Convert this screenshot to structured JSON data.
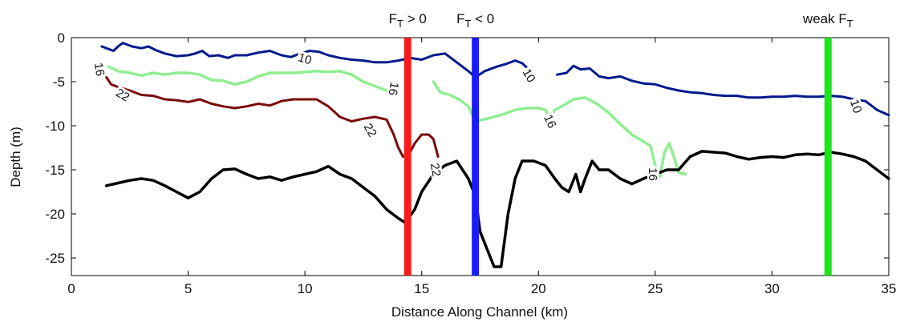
{
  "chart_data": {
    "type": "line",
    "title": "",
    "xlabel": "Distance Along Channel (km)",
    "ylabel": "Depth (m)",
    "xlim": [
      0,
      35
    ],
    "ylim": [
      -27,
      0
    ],
    "x_ticks": [
      0,
      5,
      10,
      15,
      20,
      25,
      30,
      35
    ],
    "y_ticks": [
      0,
      -5,
      -10,
      -15,
      -20,
      -25
    ],
    "grid": false,
    "colors": {
      "isoline_10": "#001a8c",
      "isoline_16": "#90ee90",
      "isoline_22": "#7a0a0a",
      "bottom": "#000000",
      "ft_pos": "#ff1a1a",
      "ft_neg": "#1a1aff",
      "ft_weak": "#22e022"
    },
    "series": [
      {
        "key": "isoline_10",
        "segments": [
          [
            [
              1.3,
              -1.0
            ],
            [
              1.5,
              -1.2
            ],
            [
              1.8,
              -1.5
            ],
            [
              2.0,
              -1.0
            ],
            [
              2.2,
              -0.6
            ],
            [
              2.6,
              -1.0
            ],
            [
              3.0,
              -1.2
            ],
            [
              3.3,
              -1.0
            ],
            [
              3.6,
              -1.4
            ],
            [
              4.0,
              -1.8
            ],
            [
              4.5,
              -2.1
            ],
            [
              5.0,
              -2.0
            ],
            [
              5.3,
              -1.8
            ],
            [
              5.6,
              -1.5
            ],
            [
              5.9,
              -2.1
            ],
            [
              6.3,
              -2.0
            ],
            [
              6.7,
              -2.3
            ],
            [
              7.0,
              -2.0
            ],
            [
              7.5,
              -2.0
            ],
            [
              8.0,
              -1.7
            ],
            [
              8.5,
              -1.5
            ],
            [
              9.0,
              -2.0
            ],
            [
              9.4,
              -2.2
            ],
            [
              9.8,
              -1.8
            ],
            [
              10.2,
              -1.5
            ],
            [
              10.6,
              -1.6
            ],
            [
              11.0,
              -2.0
            ],
            [
              11.5,
              -2.3
            ],
            [
              12.0,
              -2.5
            ],
            [
              12.5,
              -2.6
            ],
            [
              13.0,
              -2.8
            ],
            [
              13.5,
              -2.8
            ],
            [
              14.0,
              -2.6
            ],
            [
              14.5,
              -2.3
            ],
            [
              15.0,
              -2.5
            ],
            [
              15.5,
              -2.0
            ],
            [
              16.0,
              -1.8
            ],
            [
              16.5,
              -2.8
            ],
            [
              17.0,
              -3.8
            ],
            [
              17.3,
              -4.5
            ],
            [
              17.7,
              -3.8
            ],
            [
              18.2,
              -3.3
            ],
            [
              18.6,
              -3.0
            ],
            [
              19.0,
              -2.6
            ],
            [
              19.3,
              -2.9
            ],
            [
              19.5,
              -3.4
            ]
          ],
          [
            [
              20.8,
              -4.2
            ],
            [
              21.2,
              -4.0
            ],
            [
              21.5,
              -3.2
            ],
            [
              21.8,
              -3.6
            ],
            [
              22.2,
              -3.5
            ],
            [
              22.6,
              -4.4
            ],
            [
              23.0,
              -4.6
            ],
            [
              23.5,
              -4.4
            ],
            [
              24.0,
              -4.9
            ],
            [
              24.5,
              -5.2
            ],
            [
              25.0,
              -5.3
            ],
            [
              25.5,
              -5.7
            ],
            [
              26.0,
              -6.0
            ],
            [
              26.5,
              -6.2
            ],
            [
              27.0,
              -6.3
            ],
            [
              27.5,
              -6.5
            ],
            [
              28.0,
              -6.6
            ],
            [
              28.5,
              -6.6
            ],
            [
              29.0,
              -6.8
            ],
            [
              29.5,
              -6.8
            ],
            [
              30.0,
              -6.7
            ],
            [
              30.5,
              -6.7
            ],
            [
              31.0,
              -6.6
            ],
            [
              31.5,
              -6.7
            ],
            [
              32.0,
              -6.7
            ],
            [
              32.5,
              -6.6
            ],
            [
              33.0,
              -6.7
            ],
            [
              33.5,
              -7.0
            ],
            [
              34.0,
              -7.2
            ],
            [
              34.5,
              -8.2
            ],
            [
              35.0,
              -8.8
            ]
          ]
        ]
      },
      {
        "key": "isoline_16",
        "segments": [
          [
            [
              1.6,
              -3.3
            ],
            [
              2.0,
              -3.8
            ],
            [
              2.5,
              -4.0
            ],
            [
              3.0,
              -4.3
            ],
            [
              3.5,
              -4.0
            ],
            [
              4.0,
              -4.2
            ],
            [
              4.5,
              -4.0
            ],
            [
              5.0,
              -4.0
            ],
            [
              5.5,
              -4.2
            ],
            [
              6.0,
              -4.8
            ],
            [
              6.5,
              -4.9
            ],
            [
              7.0,
              -5.3
            ],
            [
              7.5,
              -5.0
            ],
            [
              8.0,
              -4.4
            ],
            [
              8.5,
              -4.0
            ],
            [
              9.0,
              -4.0
            ],
            [
              9.5,
              -4.0
            ],
            [
              10.0,
              -3.9
            ],
            [
              10.5,
              -3.8
            ],
            [
              11.0,
              -3.9
            ],
            [
              11.5,
              -3.8
            ],
            [
              12.0,
              -4.2
            ],
            [
              12.5,
              -5.0
            ],
            [
              13.0,
              -5.5
            ],
            [
              13.5,
              -6.0
            ]
          ],
          [
            [
              15.5,
              -5.0
            ],
            [
              15.8,
              -6.2
            ],
            [
              16.2,
              -6.5
            ],
            [
              16.6,
              -7.0
            ],
            [
              17.0,
              -7.8
            ],
            [
              17.3,
              -9.5
            ],
            [
              17.8,
              -9.2
            ],
            [
              18.5,
              -8.7
            ],
            [
              19.0,
              -8.2
            ],
            [
              19.5,
              -8.0
            ],
            [
              20.0,
              -8.0
            ],
            [
              20.3,
              -8.2
            ],
            [
              20.5,
              -9.0
            ],
            [
              20.7,
              -8.2
            ],
            [
              21.0,
              -7.8
            ],
            [
              21.5,
              -7.0
            ],
            [
              22.0,
              -6.8
            ],
            [
              22.5,
              -7.5
            ],
            [
              23.0,
              -8.5
            ],
            [
              23.5,
              -9.8
            ],
            [
              24.0,
              -11.0
            ],
            [
              24.5,
              -11.8
            ],
            [
              24.8,
              -12.3
            ],
            [
              25.0,
              -14.5
            ],
            [
              25.2,
              -15.8
            ],
            [
              25.4,
              -13.0
            ],
            [
              25.6,
              -12.0
            ],
            [
              25.8,
              -13.5
            ],
            [
              26.0,
              -15.3
            ],
            [
              26.3,
              -15.5
            ]
          ]
        ]
      },
      {
        "key": "isoline_22",
        "segments": [
          [
            [
              1.5,
              -4.5
            ],
            [
              1.7,
              -5.3
            ],
            [
              2.0,
              -5.6
            ],
            [
              2.5,
              -6.0
            ],
            [
              3.0,
              -6.5
            ],
            [
              3.5,
              -6.6
            ],
            [
              4.0,
              -7.0
            ],
            [
              4.5,
              -7.1
            ],
            [
              5.0,
              -7.3
            ],
            [
              5.5,
              -7.0
            ],
            [
              6.0,
              -7.5
            ],
            [
              6.5,
              -7.8
            ],
            [
              7.0,
              -8.0
            ],
            [
              7.5,
              -7.8
            ],
            [
              8.0,
              -7.5
            ],
            [
              8.5,
              -7.7
            ],
            [
              9.0,
              -7.2
            ],
            [
              9.5,
              -7.0
            ],
            [
              10.0,
              -7.0
            ],
            [
              10.5,
              -7.0
            ],
            [
              11.0,
              -7.8
            ],
            [
              11.5,
              -9.0
            ],
            [
              12.0,
              -9.5
            ],
            [
              12.5,
              -9.2
            ],
            [
              13.0,
              -9.0
            ],
            [
              13.5,
              -9.3
            ],
            [
              13.8,
              -11.0
            ],
            [
              14.0,
              -12.5
            ],
            [
              14.2,
              -13.5
            ],
            [
              14.5,
              -13.0
            ],
            [
              14.7,
              -12.0
            ],
            [
              15.0,
              -11.0
            ],
            [
              15.3,
              -11.0
            ],
            [
              15.5,
              -11.5
            ],
            [
              15.7,
              -13.5
            ]
          ]
        ]
      },
      {
        "key": "bottom",
        "segments": [
          [
            [
              1.5,
              -16.8
            ],
            [
              2.0,
              -16.5
            ],
            [
              2.5,
              -16.2
            ],
            [
              3.0,
              -16.0
            ],
            [
              3.5,
              -16.2
            ],
            [
              4.0,
              -16.8
            ],
            [
              4.5,
              -17.5
            ],
            [
              5.0,
              -18.2
            ],
            [
              5.5,
              -17.5
            ],
            [
              6.0,
              -16.0
            ],
            [
              6.5,
              -15.0
            ],
            [
              7.0,
              -14.9
            ],
            [
              7.5,
              -15.5
            ],
            [
              8.0,
              -16.0
            ],
            [
              8.5,
              -15.8
            ],
            [
              9.0,
              -16.2
            ],
            [
              9.5,
              -15.8
            ],
            [
              10.0,
              -15.5
            ],
            [
              10.5,
              -15.2
            ],
            [
              11.0,
              -14.6
            ],
            [
              11.5,
              -15.5
            ],
            [
              12.0,
              -16.0
            ],
            [
              12.5,
              -17.0
            ],
            [
              13.0,
              -18.0
            ],
            [
              13.5,
              -19.5
            ],
            [
              14.0,
              -20.5
            ],
            [
              14.3,
              -21.0
            ],
            [
              14.7,
              -19.5
            ],
            [
              15.0,
              -17.5
            ],
            [
              15.5,
              -15.5
            ],
            [
              16.0,
              -14.5
            ],
            [
              16.5,
              -14.0
            ],
            [
              17.0,
              -16.0
            ],
            [
              17.3,
              -18.0
            ],
            [
              17.5,
              -22.0
            ],
            [
              17.8,
              -24.0
            ],
            [
              18.1,
              -26.0
            ],
            [
              18.4,
              -26.0
            ],
            [
              18.7,
              -20.0
            ],
            [
              19.0,
              -16.0
            ],
            [
              19.3,
              -14.0
            ],
            [
              19.8,
              -14.0
            ],
            [
              20.3,
              -14.5
            ],
            [
              20.7,
              -16.0
            ],
            [
              21.0,
              -17.0
            ],
            [
              21.3,
              -17.5
            ],
            [
              21.6,
              -15.5
            ],
            [
              21.8,
              -17.5
            ],
            [
              22.0,
              -16.0
            ],
            [
              22.3,
              -14.0
            ],
            [
              22.6,
              -15.0
            ],
            [
              23.0,
              -15.0
            ],
            [
              23.5,
              -16.0
            ],
            [
              24.0,
              -16.6
            ],
            [
              24.5,
              -16.0
            ],
            [
              25.0,
              -15.5
            ],
            [
              25.5,
              -15.0
            ],
            [
              26.0,
              -15.0
            ],
            [
              26.5,
              -13.5
            ],
            [
              27.0,
              -12.9
            ],
            [
              27.5,
              -13.0
            ],
            [
              28.0,
              -13.1
            ],
            [
              28.5,
              -13.5
            ],
            [
              29.0,
              -13.8
            ],
            [
              29.5,
              -13.6
            ],
            [
              30.0,
              -13.5
            ],
            [
              30.5,
              -13.6
            ],
            [
              31.0,
              -13.3
            ],
            [
              31.5,
              -13.2
            ],
            [
              32.0,
              -13.3
            ],
            [
              32.5,
              -13.0
            ],
            [
              33.0,
              -13.2
            ],
            [
              33.5,
              -13.5
            ],
            [
              34.0,
              -14.0
            ],
            [
              34.5,
              -15.0
            ],
            [
              35.0,
              -16.0
            ]
          ]
        ]
      }
    ],
    "vertical_lines": [
      {
        "x": 14.4,
        "key": "ft_pos",
        "label_main": "F",
        "label_sub": "T",
        "label_rest": " > 0"
      },
      {
        "x": 17.3,
        "key": "ft_neg",
        "label_main": "F",
        "label_sub": "T",
        "label_rest": " < 0"
      },
      {
        "x": 32.4,
        "key": "ft_weak",
        "label_main": "weak F",
        "label_sub": "T",
        "label_rest": ""
      }
    ],
    "contour_labels": [
      {
        "text": "10",
        "x": 10.0,
        "y": -2.4,
        "rotate": 18
      },
      {
        "text": "10",
        "x": 19.6,
        "y": -4.3,
        "rotate": 60
      },
      {
        "text": "10",
        "x": 33.6,
        "y": -7.8,
        "rotate": 70
      },
      {
        "text": "16",
        "x": 1.2,
        "y": -3.6,
        "rotate": 80
      },
      {
        "text": "16",
        "x": 13.8,
        "y": -5.8,
        "rotate": 100
      },
      {
        "text": "16",
        "x": 20.5,
        "y": -9.5,
        "rotate": 65
      },
      {
        "text": "16",
        "x": 24.9,
        "y": -15.5,
        "rotate": 90
      },
      {
        "text": "22",
        "x": 2.2,
        "y": -6.5,
        "rotate": 30
      },
      {
        "text": "22",
        "x": 12.8,
        "y": -10.5,
        "rotate": 60
      },
      {
        "text": "22",
        "x": 15.6,
        "y": -15.0,
        "rotate": 80
      }
    ]
  }
}
